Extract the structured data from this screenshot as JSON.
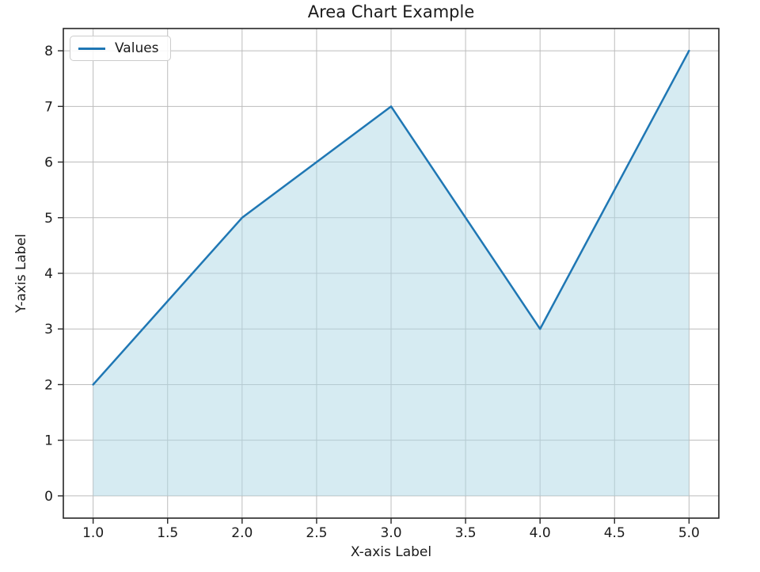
{
  "figure": {
    "title": "Area Chart Example",
    "xlabel": "X-axis Label",
    "ylabel": "Y-axis Label"
  },
  "legend": {
    "position": "upper-left",
    "entries": [
      {
        "label": "Values",
        "color": "#1f77b4"
      }
    ]
  },
  "chart_data": {
    "type": "area",
    "title": "Area Chart Example",
    "xlabel": "X-axis Label",
    "ylabel": "Y-axis Label",
    "x": [
      1,
      2,
      3,
      4,
      5
    ],
    "series": [
      {
        "name": "Values",
        "values": [
          2,
          5,
          7,
          3,
          8
        ]
      }
    ],
    "baseline": 0,
    "xlim": [
      0.8,
      5.2
    ],
    "ylim": [
      -0.4,
      8.4
    ],
    "xticks": {
      "values": [
        1,
        1.5,
        2,
        2.5,
        3,
        3.5,
        4,
        4.5,
        5
      ],
      "labels": [
        "1.0",
        "1.5",
        "2.0",
        "2.5",
        "3.0",
        "3.5",
        "4.0",
        "4.5",
        "5.0"
      ]
    },
    "yticks": {
      "values": [
        0,
        1,
        2,
        3,
        4,
        5,
        6,
        7,
        8
      ],
      "labels": [
        "0",
        "1",
        "2",
        "3",
        "4",
        "5",
        "6",
        "7",
        "8"
      ]
    },
    "grid": true,
    "legend_position": "upper-left",
    "colors": {
      "line": "#1f77b4",
      "fill": "rgba(173, 216, 230, 0.5)",
      "grid": "#bcbcbc",
      "spine": "#262626",
      "tick": "#262626",
      "text": "#1a1a1a"
    }
  }
}
